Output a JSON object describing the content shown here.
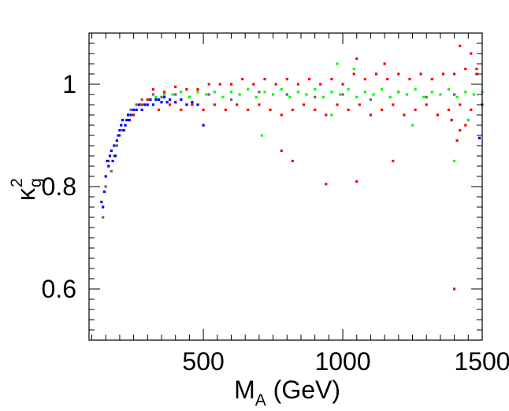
{
  "chart_data": {
    "type": "scatter",
    "title": "",
    "xlabel": {
      "main": "M",
      "subscript": "A",
      "unit": " (GeV)"
    },
    "ylabel": {
      "main": "κ",
      "superscript": "2",
      "subscript": "g"
    },
    "xlim": [
      90,
      1500
    ],
    "ylim": [
      0.5,
      1.1
    ],
    "x_ticks": [
      500,
      1000,
      1500
    ],
    "x_tick_labels": [
      "500",
      "1000",
      "1500"
    ],
    "y_ticks": [
      0.6,
      0.8,
      1.0
    ],
    "y_tick_labels": [
      "0.6",
      "0.8",
      "1"
    ],
    "grid": false,
    "legend": "none",
    "series": [
      {
        "name": "grey",
        "color": "#666666",
        "x": [
          140,
          150,
          160,
          170,
          180,
          190,
          200,
          210,
          220,
          230,
          240,
          250,
          260,
          280,
          300,
          320,
          350,
          400,
          450,
          520,
          600,
          700,
          800,
          900,
          1000,
          1100,
          1200,
          1300,
          1400,
          1450
        ],
        "y": [
          0.74,
          0.8,
          0.85,
          0.83,
          0.86,
          0.88,
          0.9,
          0.91,
          0.92,
          0.93,
          0.95,
          0.94,
          0.96,
          0.97,
          0.97,
          0.98,
          0.975,
          0.98,
          0.975,
          0.98,
          0.97,
          0.985,
          0.98,
          0.975,
          0.98,
          0.97,
          0.985,
          0.975,
          0.98,
          0.93
        ]
      },
      {
        "name": "blue",
        "color": "#0000ff",
        "x": [
          135,
          140,
          145,
          150,
          155,
          160,
          165,
          170,
          175,
          180,
          185,
          190,
          195,
          200,
          205,
          210,
          215,
          220,
          225,
          230,
          235,
          240,
          250,
          260,
          270,
          280,
          290,
          300,
          310,
          320,
          330,
          340,
          350,
          360,
          370,
          380,
          400,
          420,
          440,
          460,
          480,
          500,
          1390,
          1490
        ],
        "y": [
          0.77,
          0.76,
          0.79,
          0.82,
          0.85,
          0.84,
          0.86,
          0.87,
          0.85,
          0.88,
          0.86,
          0.89,
          0.9,
          0.91,
          0.92,
          0.93,
          0.91,
          0.92,
          0.93,
          0.94,
          0.93,
          0.94,
          0.95,
          0.95,
          0.96,
          0.95,
          0.96,
          0.96,
          0.97,
          0.96,
          0.97,
          0.97,
          0.965,
          0.975,
          0.965,
          0.97,
          0.965,
          0.97,
          0.96,
          0.965,
          0.96,
          0.92,
          0.93,
          0.895
        ]
      },
      {
        "name": "red",
        "color": "#ff0000",
        "x": [
          250,
          280,
          300,
          320,
          340,
          360,
          380,
          400,
          420,
          440,
          460,
          480,
          500,
          520,
          540,
          560,
          580,
          600,
          620,
          640,
          660,
          680,
          700,
          720,
          740,
          760,
          780,
          800,
          820,
          840,
          860,
          880,
          900,
          920,
          940,
          960,
          980,
          1000,
          1020,
          1040,
          1060,
          1080,
          1100,
          1120,
          1140,
          1160,
          1180,
          1200,
          1220,
          1240,
          1260,
          1280,
          1300,
          1320,
          1340,
          1360,
          1380,
          1400,
          1420,
          1440,
          1460,
          1480,
          1500,
          780,
          820,
          940,
          1050,
          1180,
          1400,
          1420,
          1460,
          1480,
          1050,
          1150,
          1420,
          1440,
          1390,
          1410
        ],
        "y": [
          0.94,
          0.96,
          0.97,
          0.99,
          0.95,
          0.985,
          0.96,
          0.995,
          0.95,
          0.99,
          0.96,
          0.99,
          0.95,
          1.0,
          0.96,
          1.0,
          0.95,
          1.0,
          0.96,
          1.01,
          0.95,
          1.0,
          0.96,
          1.01,
          0.95,
          1.0,
          0.94,
          1.01,
          0.95,
          1.0,
          0.96,
          1.01,
          0.95,
          1.0,
          0.94,
          1.01,
          0.96,
          1.0,
          0.95,
          1.02,
          0.96,
          1.01,
          0.94,
          1.02,
          0.95,
          1.01,
          0.96,
          1.02,
          0.94,
          1.01,
          0.95,
          1.02,
          0.96,
          1.01,
          0.94,
          1.02,
          0.95,
          1.02,
          0.96,
          1.03,
          0.95,
          1.02,
          0.96,
          0.87,
          0.85,
          0.805,
          0.81,
          0.85,
          0.6,
          1.075,
          1.06,
          1.03,
          1.05,
          1.04,
          0.91,
          0.92,
          0.93,
          0.89
        ]
      },
      {
        "name": "green",
        "color": "#00ff00",
        "x": [
          330,
          360,
          390,
          420,
          450,
          480,
          510,
          540,
          570,
          600,
          630,
          660,
          690,
          720,
          750,
          780,
          810,
          840,
          870,
          900,
          930,
          960,
          990,
          1020,
          1050,
          1080,
          1110,
          1140,
          1170,
          1200,
          1230,
          1260,
          1290,
          1320,
          1350,
          1380,
          1410,
          1440,
          1470,
          1500,
          710,
          960,
          980,
          1040,
          1250,
          1400,
          1450
        ],
        "y": [
          0.975,
          0.98,
          0.98,
          0.985,
          0.975,
          0.985,
          0.98,
          0.985,
          0.975,
          0.985,
          0.98,
          0.99,
          0.975,
          0.985,
          0.98,
          0.99,
          0.975,
          0.985,
          0.98,
          0.99,
          0.975,
          0.985,
          0.98,
          0.99,
          0.975,
          0.985,
          0.98,
          0.99,
          0.975,
          0.985,
          0.98,
          0.99,
          0.975,
          0.985,
          0.98,
          0.99,
          0.975,
          0.985,
          0.98,
          0.985,
          0.9,
          0.94,
          1.04,
          1.03,
          0.92,
          0.85,
          0.93
        ]
      }
    ]
  }
}
